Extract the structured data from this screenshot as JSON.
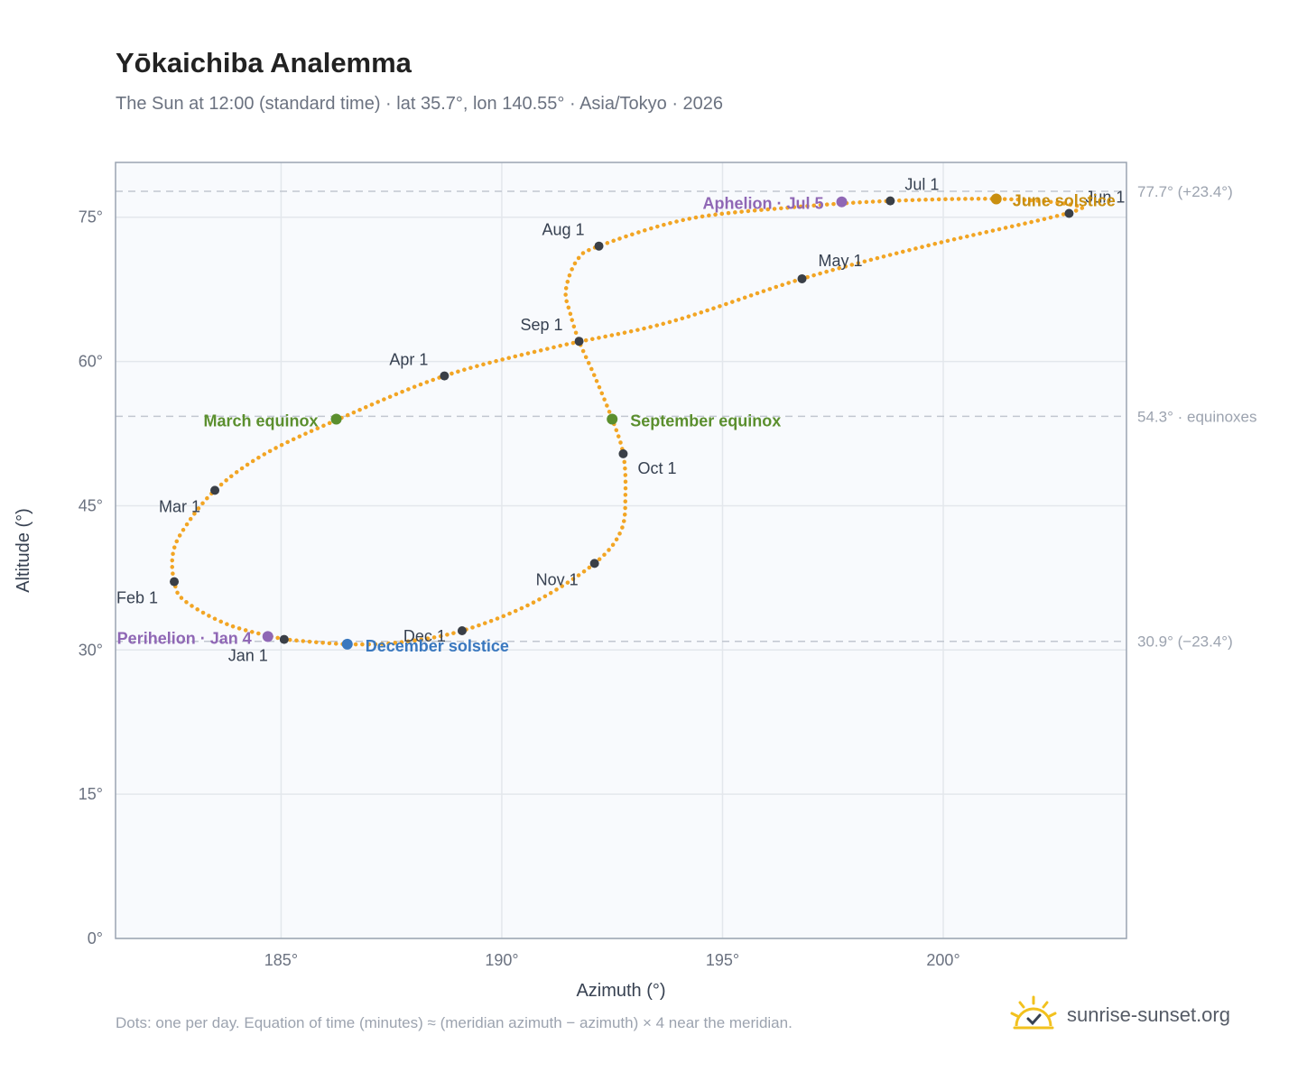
{
  "title": "Yōkaichiba Analemma",
  "subtitle": "The Sun at 12:00 (standard time) · lat 35.7°, lon 140.55° · Asia/Tokyo · 2026",
  "footnote": "Dots: one per day. Equation of time (minutes) ≈ (meridian azimuth − azimuth) × 4 near the meridian.",
  "brand": {
    "name": "sunrise-sunset.org",
    "icon": "sun-logo-icon"
  },
  "colors": {
    "curve": "#f2a524",
    "month_dot": "#3a3f47",
    "equinox": "#5b8f2e",
    "june_solstice": "#c98f10",
    "december_solstice": "#3a78bf",
    "apsides": "#8f67b5",
    "plot_bg": "#f8fafd",
    "grid": "#e3e7ec",
    "axis": "#9aa4b2",
    "ref_line": "#c1c7d0"
  },
  "chart_data": {
    "type": "scatter",
    "title": "Yōkaichiba Analemma",
    "xlabel": "Azimuth (°)",
    "ylabel": "Altitude (°)",
    "xlim": [
      181.25,
      204.15
    ],
    "ylim": [
      0,
      80.7
    ],
    "xticks": [
      185,
      190,
      195,
      200
    ],
    "xtick_labels": [
      "185°",
      "190°",
      "195°",
      "200°"
    ],
    "yticks": [
      0,
      15,
      30,
      45,
      60,
      75
    ],
    "ytick_labels": [
      "0°",
      "15°",
      "30°",
      "45°",
      "60°",
      "75°"
    ],
    "grid": true,
    "curve_points": [
      [
        185.07,
        31.1
      ],
      [
        183.82,
        32.6
      ],
      [
        182.82,
        35.1
      ],
      [
        182.58,
        37.1
      ],
      [
        182.55,
        40.0
      ],
      [
        182.8,
        42.6
      ],
      [
        183.5,
        46.6
      ],
      [
        184.6,
        50.3
      ],
      [
        186.3,
        54.0
      ],
      [
        188.7,
        58.5
      ],
      [
        191.2,
        61.5
      ],
      [
        193.8,
        64.1
      ],
      [
        196.8,
        68.6
      ],
      [
        199.6,
        72.0
      ],
      [
        202.8,
        75.4
      ],
      [
        202.9,
        76.3
      ],
      [
        201.3,
        76.9
      ],
      [
        198.8,
        76.7
      ],
      [
        196.5,
        76.0
      ],
      [
        194.2,
        74.8
      ],
      [
        192.2,
        72.0
      ],
      [
        191.7,
        70.5
      ],
      [
        191.45,
        67.4
      ],
      [
        191.55,
        65.0
      ],
      [
        191.75,
        62.1
      ],
      [
        192.1,
        58.5
      ],
      [
        192.5,
        54.0
      ],
      [
        192.75,
        50.4
      ],
      [
        192.8,
        46.3
      ],
      [
        192.7,
        42.4
      ],
      [
        192.1,
        39.0
      ],
      [
        190.7,
        34.9
      ],
      [
        189.1,
        32.0
      ],
      [
        187.7,
        30.8
      ],
      [
        186.5,
        30.6
      ],
      [
        185.07,
        31.1
      ]
    ],
    "month_points": [
      {
        "label": "Jan 1",
        "x": 185.07,
        "y": 31.1
      },
      {
        "label": "Feb 1",
        "x": 182.58,
        "y": 37.1
      },
      {
        "label": "Mar 1",
        "x": 183.5,
        "y": 46.6
      },
      {
        "label": "Apr 1",
        "x": 188.7,
        "y": 58.5
      },
      {
        "label": "May 1",
        "x": 196.8,
        "y": 68.6
      },
      {
        "label": "Jun 1",
        "x": 202.85,
        "y": 75.4
      },
      {
        "label": "Jul 1",
        "x": 198.8,
        "y": 76.7
      },
      {
        "label": "Aug 1",
        "x": 192.2,
        "y": 72.0
      },
      {
        "label": "Sep 1",
        "x": 191.75,
        "y": 62.1
      },
      {
        "label": "Oct 1",
        "x": 192.75,
        "y": 50.4
      },
      {
        "label": "Nov 1",
        "x": 192.1,
        "y": 39.0
      },
      {
        "label": "Dec 1",
        "x": 189.1,
        "y": 32.0
      }
    ],
    "events": [
      {
        "label": "March equinox",
        "x": 186.25,
        "y": 54.0,
        "color_key": "equinox"
      },
      {
        "label": "June solstice",
        "x": 201.2,
        "y": 76.9,
        "color_key": "june_solstice"
      },
      {
        "label": "September equinox",
        "x": 192.5,
        "y": 54.0,
        "color_key": "equinox"
      },
      {
        "label": "December solstice",
        "x": 186.5,
        "y": 30.6,
        "color_key": "december_solstice"
      },
      {
        "label": "Perihelion · Jan 4",
        "x": 184.7,
        "y": 31.4,
        "color_key": "apsides"
      },
      {
        "label": "Aphelion · Jul 5",
        "x": 197.7,
        "y": 76.6,
        "color_key": "apsides"
      }
    ],
    "reference_lines": [
      {
        "y": 77.7,
        "label": "77.7° (+23.4°)"
      },
      {
        "y": 54.3,
        "label": "54.3° · equinoxes"
      },
      {
        "y": 30.9,
        "label": "30.9° (−23.4°)"
      }
    ]
  }
}
